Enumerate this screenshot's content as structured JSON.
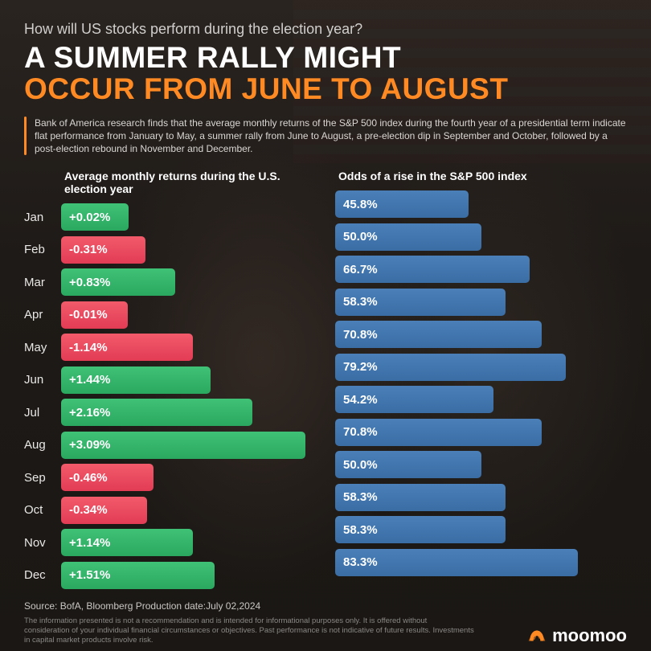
{
  "kicker": "How will US stocks perform during the election year?",
  "headline_line1": "A SUMMER RALLY MIGHT",
  "headline_line2": "OCCUR FROM JUNE TO AUGUST",
  "subcopy": "Bank of America research finds that the average monthly returns of the S&P 500 index during the fourth year of a presidential term indicate flat performance from January to May, a summer rally from June to August, a pre-election dip in September and October, followed by a post-election rebound in November and December.",
  "colors": {
    "background": "#1a1815",
    "accent_orange": "#ff8a24",
    "text_white": "#ffffff",
    "text_light": "#d9d7d4",
    "text_muted": "#8a8886",
    "bar_positive": "#2aa85f",
    "bar_negative": "#e23c55",
    "bar_blue": "#3a6da4"
  },
  "typography": {
    "kicker_fontsize": 18,
    "headline_fontsize": 37,
    "subcopy_fontsize": 12,
    "col_header_fontsize": 14,
    "month_fontsize": 15,
    "bar_label_fontsize": 15,
    "src_fontsize": 12,
    "disc_fontsize": 9.5,
    "logo_fontsize": 22
  },
  "left_chart": {
    "title": "Average monthly returns during the U.S. election year",
    "type": "bar-horizontal",
    "max_abs": 3.09,
    "width_scale_max_pct": 96,
    "width_scale_min_pct": 26,
    "rows": [
      {
        "month": "Jan",
        "value": 0.02,
        "label": "+0.02%",
        "sign": "pos"
      },
      {
        "month": "Feb",
        "value": -0.31,
        "label": "-0.31%",
        "sign": "neg"
      },
      {
        "month": "Mar",
        "value": 0.83,
        "label": "+0.83%",
        "sign": "pos"
      },
      {
        "month": "Apr",
        "value": -0.01,
        "label": "-0.01%",
        "sign": "neg"
      },
      {
        "month": "May",
        "value": -1.14,
        "label": "-1.14%",
        "sign": "neg"
      },
      {
        "month": "Jun",
        "value": 1.44,
        "label": "+1.44%",
        "sign": "pos"
      },
      {
        "month": "Jul",
        "value": 2.16,
        "label": "+2.16%",
        "sign": "pos"
      },
      {
        "month": "Aug",
        "value": 3.09,
        "label": "+3.09%",
        "sign": "pos"
      },
      {
        "month": "Sep",
        "value": -0.46,
        "label": "-0.46%",
        "sign": "neg"
      },
      {
        "month": "Oct",
        "value": -0.34,
        "label": "-0.34%",
        "sign": "neg"
      },
      {
        "month": "Nov",
        "value": 1.14,
        "label": "+1.14%",
        "sign": "pos"
      },
      {
        "month": "Dec",
        "value": 1.51,
        "label": "+1.51%",
        "sign": "pos"
      }
    ]
  },
  "right_chart": {
    "title": "Odds of a rise in the S&P 500 index",
    "type": "bar-horizontal",
    "max": 100,
    "rows": [
      {
        "value": 45.8,
        "label": "45.8%"
      },
      {
        "value": 50.0,
        "label": "50.0%"
      },
      {
        "value": 66.7,
        "label": "66.7%"
      },
      {
        "value": 58.3,
        "label": "58.3%"
      },
      {
        "value": 70.8,
        "label": "70.8%"
      },
      {
        "value": 79.2,
        "label": "79.2%"
      },
      {
        "value": 54.2,
        "label": "54.2%"
      },
      {
        "value": 70.8,
        "label": "70.8%"
      },
      {
        "value": 50.0,
        "label": "50.0%"
      },
      {
        "value": 58.3,
        "label": "58.3%"
      },
      {
        "value": 58.3,
        "label": "58.3%"
      },
      {
        "value": 83.3,
        "label": "83.3%"
      }
    ]
  },
  "source_line": "Source: BofA, Bloomberg     Production date:July 02,2024",
  "disclaimer": "The information presented is not a recommendation and is intended for informational purposes only. It is offered without consideration of your individual financial circumstances or objectives. Past performance is not indicative of future results. Investments in capital market products involve risk.",
  "logo_text": "moomoo"
}
